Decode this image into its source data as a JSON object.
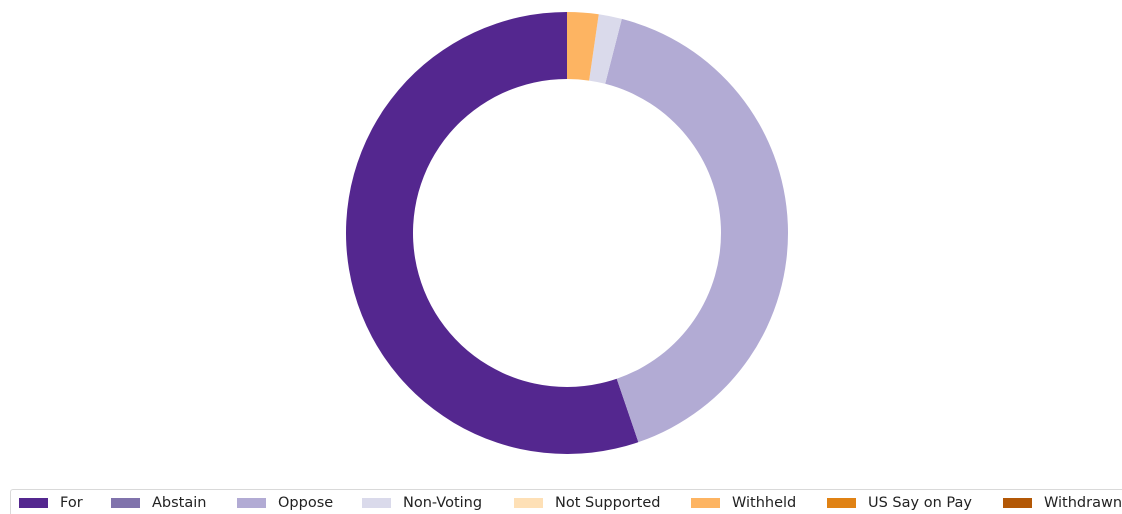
{
  "chart_data": {
    "type": "pie",
    "variant": "donut",
    "title": "",
    "categories": [
      "For",
      "Abstain",
      "Oppose",
      "Non-Voting",
      "Not Supported",
      "Withheld",
      "US Say on Pay",
      "Withdrawn"
    ],
    "values": [
      55.4,
      0.0,
      40.9,
      1.7,
      0.0,
      2.3,
      0.0,
      0.0
    ],
    "unit": "percent",
    "colors": [
      "#54278f",
      "#756bb1",
      "#b2abd4",
      "#dadaeb",
      "#fdd9a6",
      "#fdb462",
      "#e08214",
      "#b35806"
    ],
    "start": "12 o'clock, clockwise, first slice drawn last (counter-clockwise stacking ends at top)",
    "legend_position": "bottom",
    "grid": false
  },
  "legend": {
    "items": [
      {
        "label": "For",
        "color": "#54278f"
      },
      {
        "label": "Abstain",
        "color": "#8073ac"
      },
      {
        "label": "Oppose",
        "color": "#b2abd4"
      },
      {
        "label": "Non-Voting",
        "color": "#dadaeb"
      },
      {
        "label": "Not Supported",
        "color": "#fee0b6"
      },
      {
        "label": "Withheld",
        "color": "#fdb462"
      },
      {
        "label": "US Say on Pay",
        "color": "#e08214"
      },
      {
        "label": "Withdrawn",
        "color": "#b35806"
      }
    ]
  }
}
